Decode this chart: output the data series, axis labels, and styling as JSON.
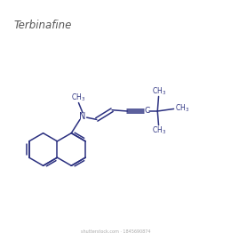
{
  "title": "Terbinafine",
  "title_color": "#555555",
  "bond_color": "#2b3080",
  "background_color": "#ffffff",
  "watermark": "shutterstock.com · 1845690874",
  "figsize": [
    2.6,
    2.8
  ],
  "dpi": 100
}
